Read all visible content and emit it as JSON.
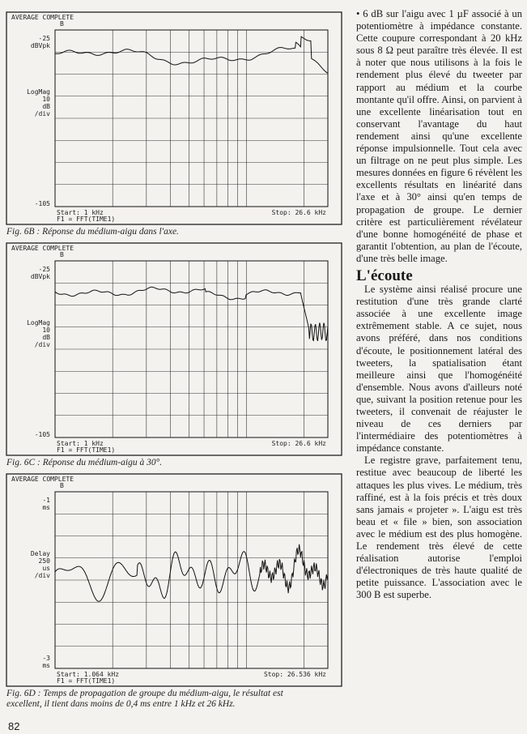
{
  "figures": [
    {
      "header": "AVERAGE COMPLETE",
      "marker": "B",
      "top_label": [
        "-25",
        "dBVpk"
      ],
      "mid_label": [
        "LogMag",
        "10",
        "dB",
        "/div"
      ],
      "bottom_label": [
        "-105"
      ],
      "start": "Start: 1 kHz",
      "trace": "F1 = FFT(TIME1)",
      "stop": "Stop: 26.6 kHz",
      "caption": "Fig. 6B : Réponse du médium-aigu dans l'axe."
    },
    {
      "header": "AVERAGE COMPLETE",
      "marker": "B",
      "top_label": [
        "-25",
        "dBVpk"
      ],
      "mid_label": [
        "LogMag",
        "10",
        "dB",
        "/div"
      ],
      "bottom_label": [
        "-105"
      ],
      "start": "Start: 1 kHz",
      "trace": "F1 = FFT(TIME1)",
      "stop": "Stop: 26.6 kHz",
      "caption": "Fig. 6C : Réponse du médium-aigu à 30°."
    },
    {
      "header": "AVERAGE COMPLETE",
      "marker": "B",
      "top_label": [
        "-1",
        "ms"
      ],
      "mid_label": [
        "Delay",
        "250",
        "us",
        "/div"
      ],
      "bottom_label": [
        "-3",
        "ms"
      ],
      "start": "Start: 1.064 kHz",
      "trace": "F1 = FFT(TIME1)",
      "stop": "Stop: 26.536 kHz",
      "caption": "Fig. 6D : Temps de propagation de groupe du médium-aigu, le résultat est excellent, il tient dans moins de 0,4 ms entre 1 kHz et 26 kHz."
    }
  ],
  "article": {
    "paragraphs_1": [
      "• 6 dB sur l'aigu avec 1 µF associé à un potentiomètre à impédance constante. Cette coupure correspondant à 20 kHz sous 8 Ω peut paraître très élevée. Il est à noter que nous utilisons à la fois le rendement plus élevé du tweeter par rapport au médium et la courbe montante qu'il offre. Ainsi, on parvient à une excellente linéarisation tout en conservant l'avantage du haut rendement ainsi qu'une excellente réponse impulsionnelle. Tout cela avec un filtrage on ne peut plus simple. Les mesures données en figure 6 révèlent les excellents résultats en linéarité dans l'axe et à 30° ainsi qu'en temps de propagation de groupe. Le dernier critère est particulièrement révélateur d'une bonne homogénéité de phase et garantit l'obtention, au plan de l'écoute, d'une très belle image."
    ],
    "heading": "L'écoute",
    "paragraphs_2": [
      "Le système ainsi réalisé procure une restitution d'une très grande clarté associée à une excellente image extrêmement stable. A ce sujet, nous avons préféré, dans nos conditions d'écoute, le positionnement latéral des tweeters, la spatialisation étant meilleure ainsi que l'homogénéité d'ensemble. Nous avons d'ailleurs noté que, suivant la position retenue pour les tweeters, il convenait de réajuster le niveau de ces derniers par l'intermédiaire des potentiomètres à impédance constante.",
      "Le registre grave, parfaitement tenu, restitue avec beaucoup de liberté les attaques les plus vives. Le médium, très raffiné, est à la fois précis et très doux sans jamais « projeter ». L'aigu est très beau et « file » bien, son association avec le médium est des plus homogène. Le rendement très élevé de cette réalisation autorise l'emploi d'électroniques de très haute qualité de petite puissance. L'association avec le 300 B est superbe."
    ]
  },
  "page_number": "82"
}
